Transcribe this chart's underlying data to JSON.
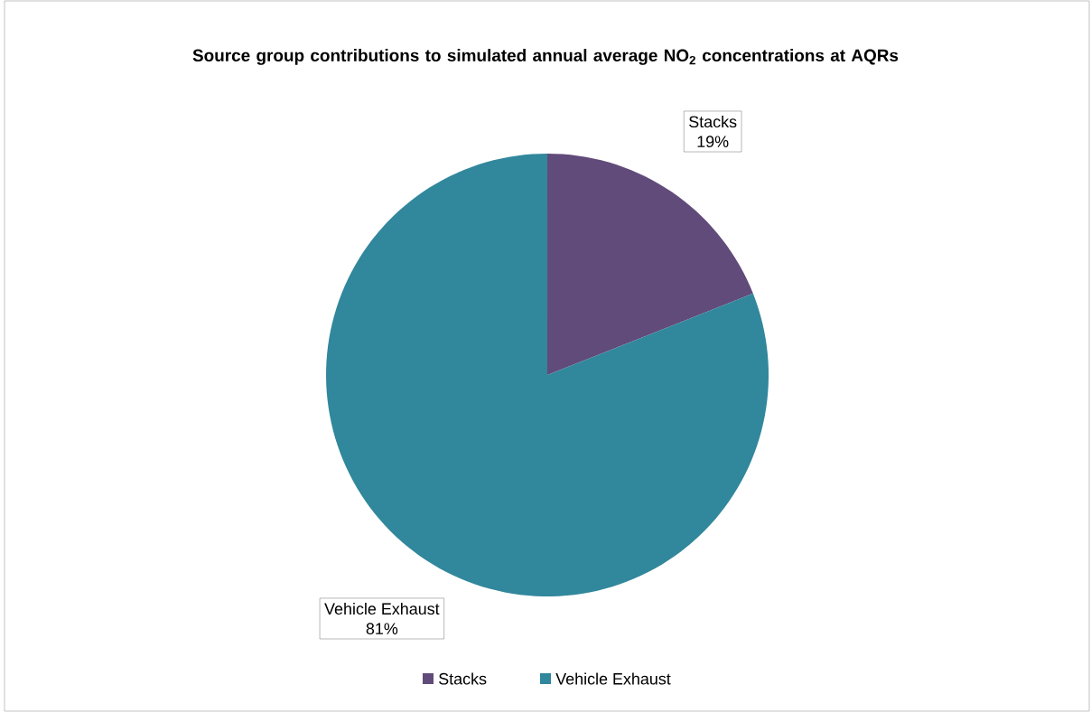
{
  "chart_data": {
    "type": "pie",
    "title": "Source group contributions to simulated annual average NO$_{2}$ concentrations at AQRs",
    "categories": [
      "Stacks",
      "Vehicle Exhaust"
    ],
    "values": [
      19,
      81
    ],
    "colors": [
      "#614b7a",
      "#31879c"
    ],
    "value_labels": [
      "19%",
      "81%"
    ],
    "legend": "bottom"
  }
}
